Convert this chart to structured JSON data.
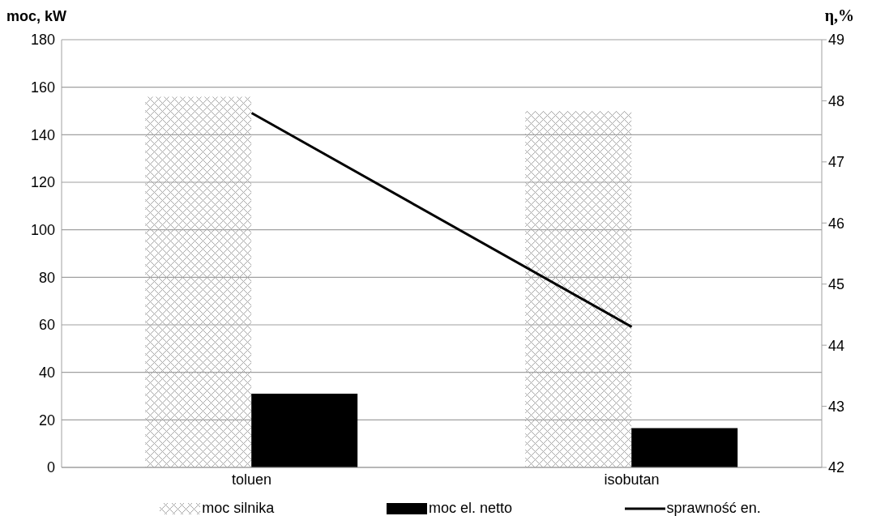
{
  "chart_data": {
    "type": "bar",
    "ylabel": "moc, kW",
    "y2label": "η,%",
    "categories": [
      "toluen",
      "isobutan"
    ],
    "series": [
      {
        "name": "moc silnika",
        "color": "#a6a6a6",
        "values": [
          156,
          150
        ]
      },
      {
        "name": "moc el. netto",
        "color": "#000000",
        "values": [
          31,
          16.5
        ]
      },
      {
        "name": "sprawność en.",
        "type": "line",
        "axis": "y2",
        "color": "#000000",
        "values": [
          47.8,
          44.3
        ]
      }
    ],
    "ylim": [
      0,
      180
    ],
    "yticks": [
      0,
      20,
      40,
      60,
      80,
      100,
      120,
      140,
      160,
      180
    ],
    "y2lim": [
      42,
      49
    ],
    "y2ticks": [
      42,
      43,
      44,
      45,
      46,
      47,
      48,
      49
    ],
    "grid": "y",
    "legend": "bottom",
    "marker": "none"
  }
}
